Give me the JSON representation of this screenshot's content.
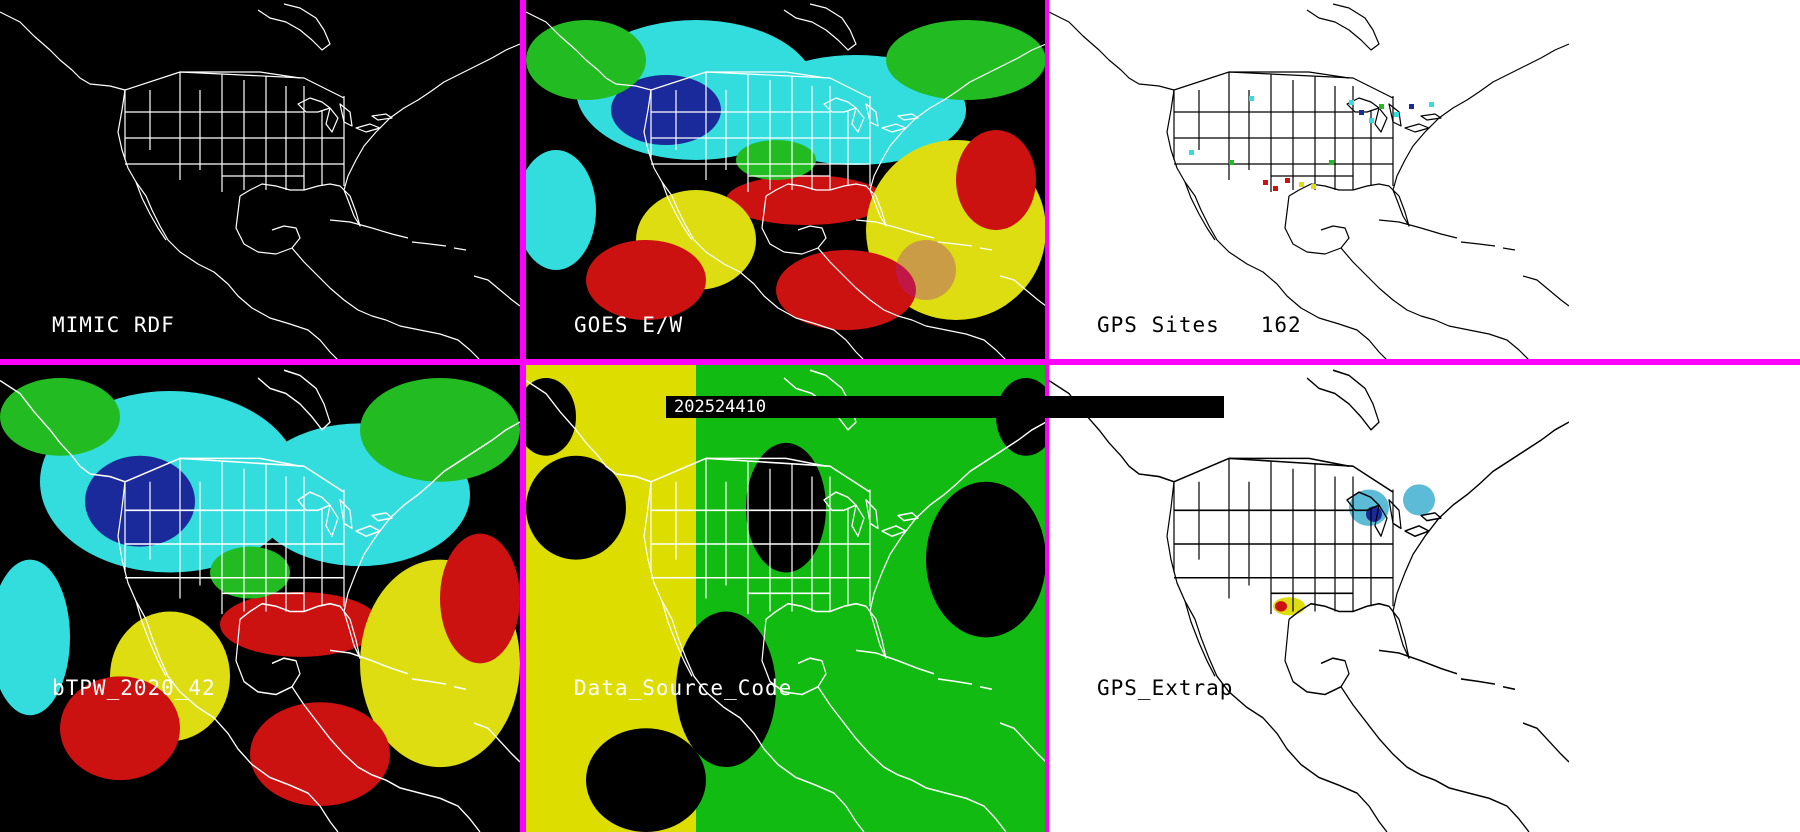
{
  "panels": {
    "p1": {
      "label": "MIMIC RDF",
      "background": "#000000"
    },
    "p2": {
      "label": "GOES E/W",
      "background": "#000000"
    },
    "p3": {
      "label": "GPS Sites   162",
      "background": "#ffffff"
    },
    "p4": {
      "label": "bTPW_2020_42",
      "background": "#000000"
    },
    "p5": {
      "label": "Data_Source_Code",
      "background": "#000000"
    },
    "p6": {
      "label": "GPS_Extrap",
      "background": "#ffffff"
    }
  },
  "timestamp": "202524410",
  "colors": {
    "divider": "#ff00ff",
    "cyan": "#33dddd",
    "blue": "#1a2a9a",
    "green": "#22bb22",
    "yellow": "#dddd11",
    "red": "#cc1111",
    "purple": "#aa22aa",
    "data_source_yellow": "#dddd00",
    "data_source_green": "#11bb11"
  }
}
